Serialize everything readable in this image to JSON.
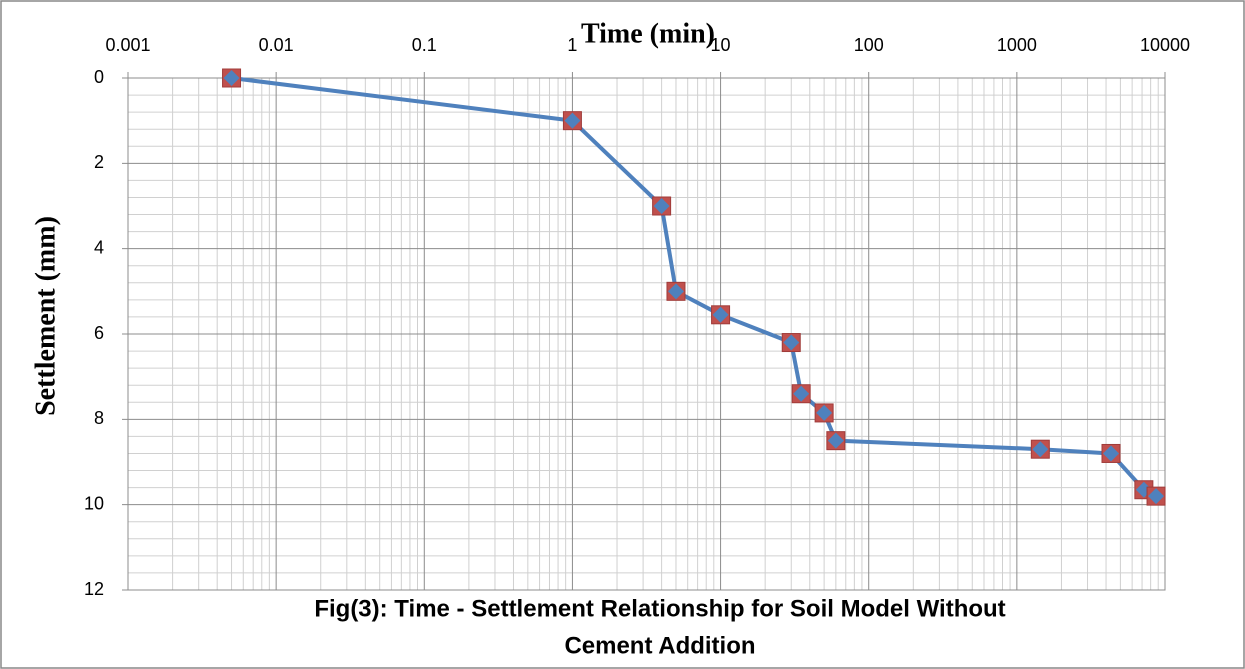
{
  "chart_data": {
    "type": "line",
    "title": "Time (min)",
    "y_label": "Settlement  (mm)",
    "caption": [
      "Fig(3): Time - Settlement Relationship for Soil Model  Without",
      "Cement Addition"
    ],
    "x_log": true,
    "y_inverted": true,
    "grid": true,
    "minor_grid": true,
    "xlim": [
      0.001,
      10000
    ],
    "xticks": [
      0.001,
      0.01,
      0.1,
      1,
      10,
      100,
      1000,
      10000
    ],
    "ylim": [
      0,
      12
    ],
    "yticks": [
      0,
      2,
      4,
      6,
      8,
      10,
      12
    ],
    "series": [
      {
        "color": "#4f81bd",
        "marker_color": "#c0504d",
        "x": [
          0.005,
          1,
          4,
          5,
          10,
          30,
          35,
          50,
          60,
          1440,
          4320,
          7200,
          8700
        ],
        "values": [
          0,
          1,
          3,
          5,
          5.55,
          6.2,
          7.4,
          7.85,
          8.5,
          8.7,
          8.8,
          9.65,
          9.8
        ]
      }
    ]
  }
}
